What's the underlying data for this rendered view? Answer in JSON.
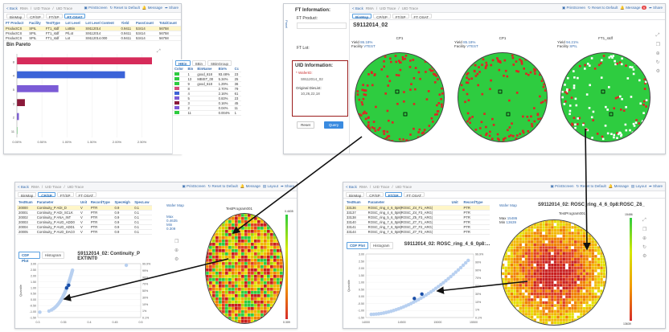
{
  "nav": {
    "back": "< Back",
    "crumb1": "RMA",
    "crumb2": "UID Trace",
    "crumb3": "UID Trace",
    "print": "PrintScreen",
    "reset": "Reset to Default",
    "message": "Message",
    "layout": "Layout",
    "share": "Share",
    "badge": "9"
  },
  "tabs": [
    "BinMap",
    "CP/SP",
    "FT/SP",
    "FT OSAT"
  ],
  "topleft": {
    "columns": [
      "FT Product",
      "Facility",
      "TestType",
      "Lot Level",
      "Lot Level Content",
      "Yield",
      "PassCount",
      "TotalCount"
    ],
    "rows": [
      [
        "ProductCS",
        "SPIL",
        "FT1_stdf",
        "LotBin",
        "S9112014",
        "0.9411",
        "53414",
        "56758"
      ],
      [
        "ProductCS",
        "SPIL",
        "FT1_stdf",
        "P/Lot",
        "S9112014",
        "0.9411",
        "53414",
        "56758"
      ],
      [
        "ProductCS",
        "SPIL",
        "FT1_stdf",
        "Lot",
        "S9112014.000",
        "0.9411",
        "53414",
        "56758"
      ]
    ],
    "pareto_title": "Bin Pareto",
    "bin_tabs": [
      "HBin",
      "SBin",
      "SBinGroup"
    ],
    "bin_cols": [
      "Color",
      "Bin",
      "BinName",
      "Bin%",
      "Cc"
    ],
    "bin_rows": [
      [
        "#2ecc40",
        "1",
        "good_618",
        "93.48%",
        "23"
      ],
      [
        "#2ecc40",
        "13",
        "MBIST_00",
        "5.34%",
        "25"
      ],
      [
        "#2ecc40",
        "9",
        "good_618",
        "1.29%",
        "36"
      ],
      [
        "#d64a7d",
        "8",
        "",
        "2.70%",
        "79"
      ],
      [
        "#3e63d6",
        "4",
        "",
        "2.16%",
        "61"
      ],
      [
        "#7b5bd6",
        "5",
        "",
        "0.83%",
        "23"
      ],
      [
        "#8b1a3a",
        "3",
        "",
        "0.16%",
        "45"
      ],
      [
        "#7b5bd6",
        "2",
        "",
        "0.04%",
        "11"
      ],
      [
        "#2ecc40",
        "11",
        "",
        "0.004%",
        "1"
      ]
    ]
  },
  "chart_data": {
    "type": "bar",
    "orientation": "horizontal",
    "title": "Bin Pareto",
    "categories": [
      "8",
      "4",
      "5",
      "3",
      "2",
      "11"
    ],
    "values": [
      2.7,
      2.16,
      0.83,
      0.16,
      0.04,
      0.004
    ],
    "colors": [
      "#d62b5a",
      "#3b63d8",
      "#7b5bd6",
      "#8b1a3a",
      "#7b5bd6",
      "#2ecc40"
    ],
    "xlim": [
      0,
      2.7
    ],
    "xticks": [
      "0.00%",
      "0.50%",
      "1.00%",
      "1.50%",
      "2.00%",
      "2.50%"
    ]
  },
  "ftinfo": {
    "title": "FT Information:",
    "product_label": "FT Product:",
    "lot_label": "FT Lot:",
    "uid_title": "UID Information:",
    "wafer_label": "* WaferID:",
    "wafer_value": "S9112014_02",
    "die_label": "Original DieList:",
    "die_value": "10,26,22,18",
    "reset": "Reset",
    "query": "Query",
    "panel_label": "Panel"
  },
  "wafermaps": {
    "title": "S9112014_02",
    "maps": [
      {
        "name": "CP1",
        "yield_label": "Yield",
        "yield": "86.18%",
        "facility_label": "Facility",
        "facility": "VTEST"
      },
      {
        "name": "CP1",
        "yield_label": "Yield",
        "yield": "85.18%",
        "facility_label": "Facility",
        "facility": "VTEST"
      },
      {
        "name": "FT1_stdf",
        "yield_label": "Yield",
        "yield": "94.21%",
        "facility_label": "Facility",
        "facility": "SPIL"
      }
    ]
  },
  "bottomleft": {
    "columns": [
      "TestNum",
      "Parameter",
      "Unit",
      "RecordType",
      "SpecHigh",
      "SpecLow"
    ],
    "rows": [
      [
        "20000",
        "Continuity_P ADI_D",
        "V",
        "PTR",
        "0.9",
        "0.1"
      ],
      [
        "20001",
        "Continuity_P ADI_SCLK",
        "V",
        "PTR",
        "0.9",
        "0.1"
      ],
      [
        "20002",
        "Continuity_P ANA_INT",
        "V",
        "PTR",
        "0.9",
        "0.1"
      ],
      [
        "20003",
        "Continuity_P AUD_ADD0",
        "V",
        "PTR",
        "0.9",
        "0.1"
      ],
      [
        "20004",
        "Continuity_P AUD_ADD1",
        "V",
        "PTR",
        "0.9",
        "0.1"
      ],
      [
        "20005",
        "Continuity_P AUD_DAC0",
        "V",
        "PTR",
        "0.9",
        "0.1"
      ]
    ],
    "plot_tabs": [
      "CDF Plot",
      "Histogram"
    ],
    "chart_title": "S9112014_02: Continuity_P EXTINT0",
    "wafer_map_tab": "Wafer Map",
    "program": "TestProgram001",
    "max_label": "Max",
    "max": "0.4635",
    "min_label": "Min",
    "min": "0.309",
    "y_ticks": [
      "3.00",
      "2.50",
      "2.00",
      "1.50",
      "1.00",
      "0.50",
      "0.00",
      "-0.50",
      "-1.00",
      "-1.50"
    ],
    "pct_ticks": [
      "99.9%",
      "99%",
      "90%",
      "70%",
      "50%",
      "30%",
      "10%",
      "1%",
      "0.1%"
    ],
    "x_ticks": [
      "0.3",
      "0.35",
      "0.4",
      "0.45",
      "0.5"
    ],
    "ylabel": "Quantile",
    "color_top": "0.4635",
    "color_bot": "0.309"
  },
  "bottomright": {
    "columns": [
      "TestNum",
      "Parameter",
      "Unit",
      "RecordType"
    ],
    "rows": [
      [
        "33136",
        "ROSC_ring_4_6_0p8|ROSC_Z4_F1_ARG|",
        "",
        "PTR"
      ],
      [
        "33137",
        "ROSC_ring_4_6_0p8|ROSC_Z4_F3_ARG|",
        "",
        "PTR"
      ],
      [
        "33138",
        "ROSC_ring_5_6_0p8|ROSC_Z5_F3_ARG|",
        "",
        "PTR"
      ],
      [
        "33140",
        "ROSC_ring_7_6_0p8|ROSC_Z7_F1_ARG|",
        "",
        "PTR"
      ],
      [
        "33141",
        "ROSC_ring_7_6_0p8|ROSC_Z7_F2_ARG|",
        "",
        "PTR"
      ],
      [
        "33144",
        "ROSC_ring_7_6_0p8|ROSC_Z7_F3_ARG|",
        "",
        "PTR"
      ]
    ],
    "plot_tabs": [
      "CDF Plot",
      "Histogram"
    ],
    "chart_title": "S9112014_02: ROSC_ring_4_6_0p8:...",
    "wafer_title": "S9112014_02: ROSC_ring_4_6_0p8:ROSC_Z6_",
    "wafer_map_tab": "Wafer Map",
    "program": "TestProgram001",
    "max_label": "Max",
    "max": "15486",
    "min_label": "Min",
    "min": "13639",
    "y_ticks": [
      "3.00",
      "2.50",
      "2.00",
      "1.50",
      "1.00",
      "0.50",
      "0.00",
      "-0.50",
      "-1.00",
      "-1.50"
    ],
    "pct_ticks": [
      "99.9%",
      "99%",
      "90%",
      "70%",
      "50%",
      "30%",
      "10%",
      "1%",
      "0.1%"
    ],
    "x_ticks": [
      "14000",
      "14500",
      "15000",
      "15500"
    ],
    "ylabel": "Quantile",
    "color_top": "15486",
    "color_bot": "13639"
  }
}
